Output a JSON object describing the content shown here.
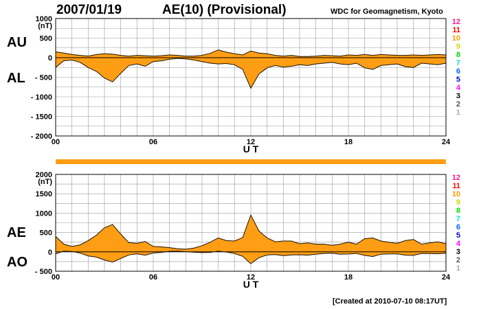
{
  "header": {
    "date": "2007/01/19",
    "title": "AE(10) (Provisional)",
    "source": "WDC for Geomagnetism, Kyoto",
    "created": "[Created at 2010-07-10 08:17UT]"
  },
  "side_labels": {
    "au": "AU",
    "al": "AL",
    "ae": "AE",
    "ao": "AO"
  },
  "colors": {
    "fill": "#ff9e14",
    "outline": "#1a1000",
    "grid": "#999999",
    "zero": "#000000",
    "station_numbers": [
      "#ff1493",
      "#ff0000",
      "#ff9900",
      "#d4d400",
      "#00dd00",
      "#00dddd",
      "#0066ff",
      "#0000cc",
      "#ff00ff",
      "#000000",
      "#555555",
      "#aaaaaa"
    ]
  },
  "station_numbers": [
    "12",
    "11",
    "10",
    "9",
    "8",
    "7",
    "6",
    "5",
    "4",
    "3",
    "2",
    "1"
  ],
  "chart_data": [
    {
      "type": "area",
      "name": "AU/AL",
      "xlabel": "U T",
      "ylabel": "(nT)",
      "xlim": [
        0,
        24
      ],
      "ylim": [
        -2000,
        1000
      ],
      "xticks": [
        {
          "v": 0,
          "label": "00"
        },
        {
          "v": 6,
          "label": "06"
        },
        {
          "v": 12,
          "label": "12"
        },
        {
          "v": 18,
          "label": "18"
        },
        {
          "v": 24,
          "label": "24"
        }
      ],
      "yticks": [
        {
          "v": 1000,
          "label": "1000"
        },
        {
          "v": 500,
          "label": "500"
        },
        {
          "v": 0,
          "label": "0"
        },
        {
          "v": -500,
          "label": "- 500"
        },
        {
          "v": -1000,
          "label": "- 1000"
        },
        {
          "v": -1500,
          "label": "- 1500"
        },
        {
          "v": -2000,
          "label": "- 2000"
        }
      ],
      "x": [
        0,
        0.5,
        1,
        1.5,
        2,
        2.5,
        3,
        3.5,
        4,
        4.5,
        5,
        5.5,
        6,
        6.5,
        7,
        7.5,
        8,
        8.5,
        9,
        9.5,
        10,
        10.5,
        11,
        11.5,
        12,
        12.5,
        13,
        13.5,
        14,
        14.5,
        15,
        15.5,
        16,
        16.5,
        17,
        17.5,
        18,
        18.5,
        19,
        19.5,
        20,
        20.5,
        21,
        21.5,
        22,
        22.5,
        23,
        23.5,
        24
      ],
      "series": [
        {
          "name": "AU",
          "values": [
            150,
            120,
            80,
            60,
            40,
            80,
            100,
            90,
            60,
            40,
            60,
            50,
            40,
            50,
            70,
            60,
            40,
            40,
            60,
            110,
            200,
            140,
            100,
            70,
            170,
            120,
            100,
            60,
            40,
            60,
            30,
            30,
            40,
            60,
            50,
            40,
            70,
            60,
            80,
            60,
            80,
            70,
            60,
            60,
            70,
            60,
            70,
            80,
            70
          ]
        },
        {
          "name": "AL",
          "values": [
            -250,
            -80,
            -60,
            -120,
            -250,
            -350,
            -520,
            -620,
            -400,
            -200,
            -160,
            -220,
            -100,
            -80,
            -40,
            -20,
            -30,
            -60,
            -100,
            -140,
            -160,
            -150,
            -180,
            -300,
            -780,
            -420,
            -260,
            -200,
            -240,
            -220,
            -180,
            -200,
            -160,
            -140,
            -120,
            -160,
            -180,
            -140,
            -260,
            -300,
            -200,
            -180,
            -160,
            -230,
            -250,
            -140,
            -160,
            -180,
            -140
          ]
        }
      ]
    },
    {
      "type": "area",
      "name": "AE/AO",
      "xlabel": "U T",
      "ylabel": "(nT)",
      "xlim": [
        0,
        24
      ],
      "ylim": [
        -500,
        2000
      ],
      "xticks": [
        {
          "v": 0,
          "label": "00"
        },
        {
          "v": 6,
          "label": "06"
        },
        {
          "v": 12,
          "label": "12"
        },
        {
          "v": 18,
          "label": "18"
        },
        {
          "v": 24,
          "label": "24"
        }
      ],
      "yticks": [
        {
          "v": 2000,
          "label": "2000"
        },
        {
          "v": 1500,
          "label": "1500"
        },
        {
          "v": 1000,
          "label": "1000"
        },
        {
          "v": 500,
          "label": "500"
        },
        {
          "v": 0,
          "label": "0"
        },
        {
          "v": -500,
          "label": "- 500"
        }
      ],
      "x": [
        0,
        0.5,
        1,
        1.5,
        2,
        2.5,
        3,
        3.5,
        4,
        4.5,
        5,
        5.5,
        6,
        6.5,
        7,
        7.5,
        8,
        8.5,
        9,
        9.5,
        10,
        10.5,
        11,
        11.5,
        12,
        12.5,
        13,
        13.5,
        14,
        14.5,
        15,
        15.5,
        16,
        16.5,
        17,
        17.5,
        18,
        18.5,
        19,
        19.5,
        20,
        20.5,
        21,
        21.5,
        22,
        22.5,
        23,
        23.5,
        24
      ],
      "series": [
        {
          "name": "AE",
          "values": [
            400,
            200,
            140,
            180,
            290,
            430,
            620,
            710,
            460,
            240,
            220,
            270,
            140,
            130,
            110,
            80,
            70,
            100,
            160,
            250,
            360,
            290,
            280,
            370,
            950,
            540,
            360,
            260,
            280,
            280,
            210,
            230,
            200,
            200,
            170,
            200,
            250,
            200,
            340,
            360,
            280,
            250,
            220,
            290,
            320,
            200,
            230,
            260,
            210
          ]
        },
        {
          "name": "AO",
          "values": [
            -50,
            20,
            10,
            -30,
            -105,
            -135,
            -210,
            -265,
            -170,
            -80,
            -50,
            -85,
            -30,
            -15,
            15,
            20,
            5,
            -10,
            -20,
            -15,
            20,
            -5,
            -40,
            -115,
            -305,
            -150,
            -80,
            -70,
            -100,
            -80,
            -75,
            -85,
            -60,
            -40,
            -35,
            -60,
            -55,
            -40,
            -90,
            -120,
            -60,
            -55,
            -50,
            -85,
            -90,
            -40,
            -45,
            -50,
            -35
          ]
        }
      ]
    }
  ]
}
